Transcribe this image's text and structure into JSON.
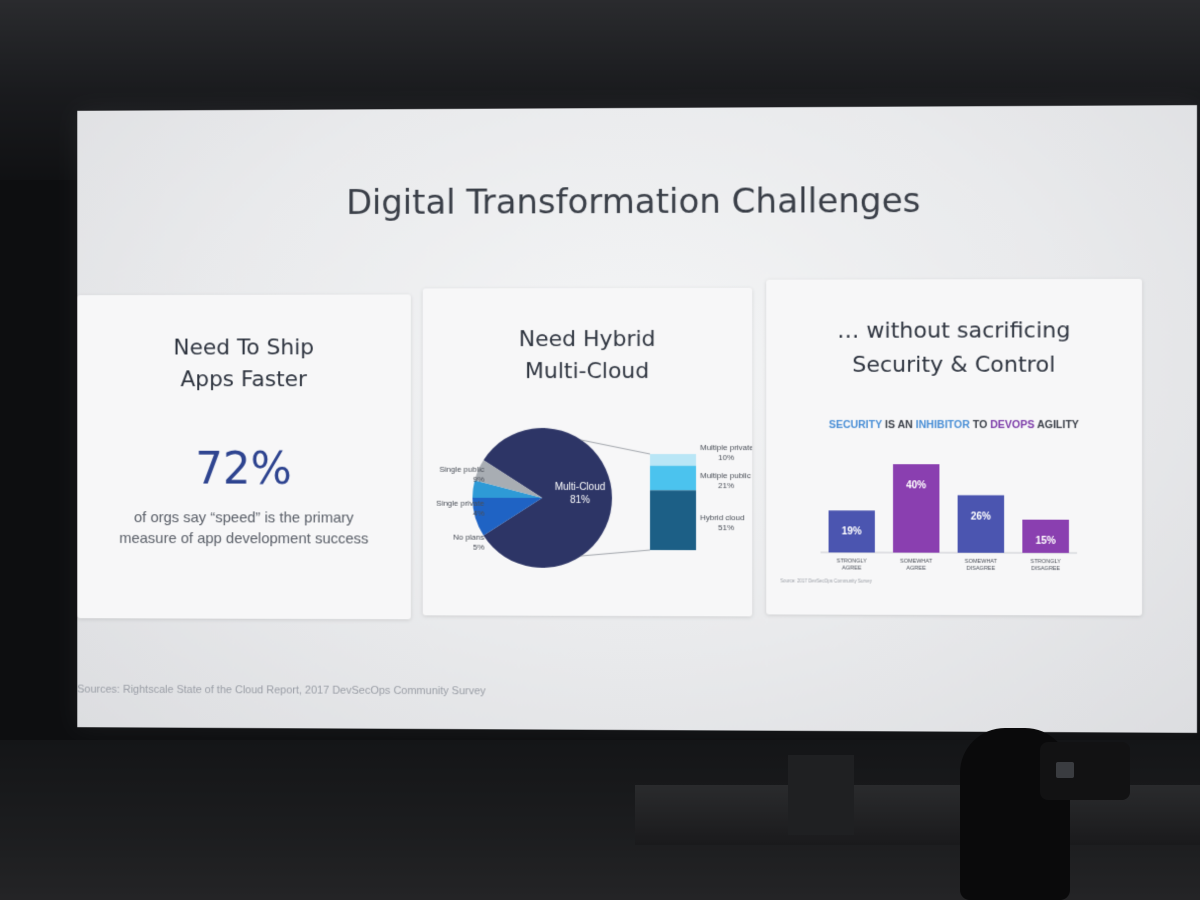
{
  "slide": {
    "title": "Digital Transformation Challenges",
    "sources": "Sources: Rightscale State of the Cloud Report, 2017 DevSecOps Community Survey"
  },
  "card1": {
    "heading_line1": "Need To Ship",
    "heading_line2": "Apps Faster",
    "stat": "72%",
    "caption": "of orgs say “speed” is the primary measure of app development success"
  },
  "card2": {
    "heading_line1": "Need Hybrid",
    "heading_line2": "Multi-Cloud"
  },
  "card3": {
    "heading_line1": "… without sacrificing",
    "heading_line2": "Security & Control"
  },
  "chart_data": [
    {
      "type": "pie",
      "slices": [
        {
          "label": "Multi-Cloud",
          "value_label": "81%",
          "value": 81,
          "color": "#2d3566"
        },
        {
          "label": "Single public",
          "value_label": "9%",
          "value": 9,
          "color": "#1f63c4"
        },
        {
          "label": "Single private",
          "value_label": "4%",
          "value": 4,
          "color": "#2e9ad6"
        },
        {
          "label": "No plans",
          "value_label": "5%",
          "value": 5,
          "color": "#a8adb3"
        }
      ],
      "breakdown": {
        "of": "Multi-Cloud",
        "type": "stacked-bar",
        "segments": [
          {
            "label": "Multiple private",
            "value_label": "10%",
            "value": 10,
            "color": "#b9e6f6"
          },
          {
            "label": "Multiple public",
            "value_label": "21%",
            "value": 21,
            "color": "#4bc3ee"
          },
          {
            "label": "Hybrid cloud",
            "value_label": "51%",
            "value": 51,
            "color": "#1c5f86"
          }
        ]
      }
    },
    {
      "type": "bar",
      "title_parts": [
        {
          "text": "SECURITY",
          "color": "#4a8fd6"
        },
        {
          "text": " IS AN ",
          "color": "#3a3f48"
        },
        {
          "text": "INHIBITOR",
          "color": "#4a8fd6"
        },
        {
          "text": " TO ",
          "color": "#3a3f48"
        },
        {
          "text": "DEVOPS",
          "color": "#7b3aa8"
        },
        {
          "text": " AGILITY",
          "color": "#3a3f48"
        }
      ],
      "categories": [
        [
          "STRONGLY",
          "AGREE"
        ],
        [
          "SOMEWHAT",
          "AGREE"
        ],
        [
          "SOMEWHAT",
          "DISAGREE"
        ],
        [
          "STRONGLY",
          "DISAGREE"
        ]
      ],
      "values": [
        19,
        40,
        26,
        15
      ],
      "value_labels": [
        "19%",
        "40%",
        "26%",
        "15%"
      ],
      "colors": [
        "#4b55b0",
        "#8a3fb0",
        "#4b55b0",
        "#8a3fb0"
      ],
      "ylim": [
        0,
        40
      ],
      "source": "Source: 2017 DevSecOps Community Survey"
    }
  ]
}
